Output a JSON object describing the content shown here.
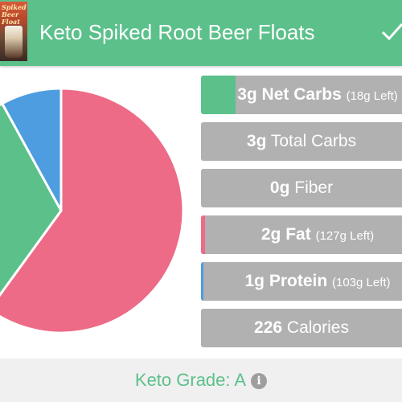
{
  "header": {
    "thumbnail_text": "Spiked Beer Float",
    "title": "Keto Spiked Root Beer Floats",
    "check_icon": "check-icon"
  },
  "colors": {
    "green": "#5cc08b",
    "pink": "#ed6b87",
    "blue": "#4d9de0",
    "gray": "#b1b1b1"
  },
  "macros": {
    "net_carbs": {
      "value": "3g",
      "name": "Net Carbs",
      "left": "(18g Left)",
      "fill_fraction": 0.17
    },
    "total_carbs": {
      "value": "3g",
      "name": "Total Carbs"
    },
    "fiber": {
      "value": "0g",
      "name": "Fiber"
    },
    "fat": {
      "value": "2g",
      "name": "Fat",
      "left": "(127g Left)",
      "fill_fraction": 0.02
    },
    "protein": {
      "value": "1g",
      "name": "Protein",
      "left": "(103g Left)",
      "fill_fraction": 0.01
    },
    "calories": {
      "value": "226",
      "name": "Calories"
    }
  },
  "chart_data": {
    "type": "pie",
    "slices": [
      {
        "label": "Fat",
        "value": 60,
        "color": "#ed6b87"
      },
      {
        "label": "Net Carbs",
        "value": 32,
        "color": "#5cc08b"
      },
      {
        "label": "Protein",
        "value": 8,
        "color": "#4d9de0"
      }
    ]
  },
  "footer": {
    "grade_label": "Keto Grade: A",
    "info_icon": "info-icon"
  }
}
